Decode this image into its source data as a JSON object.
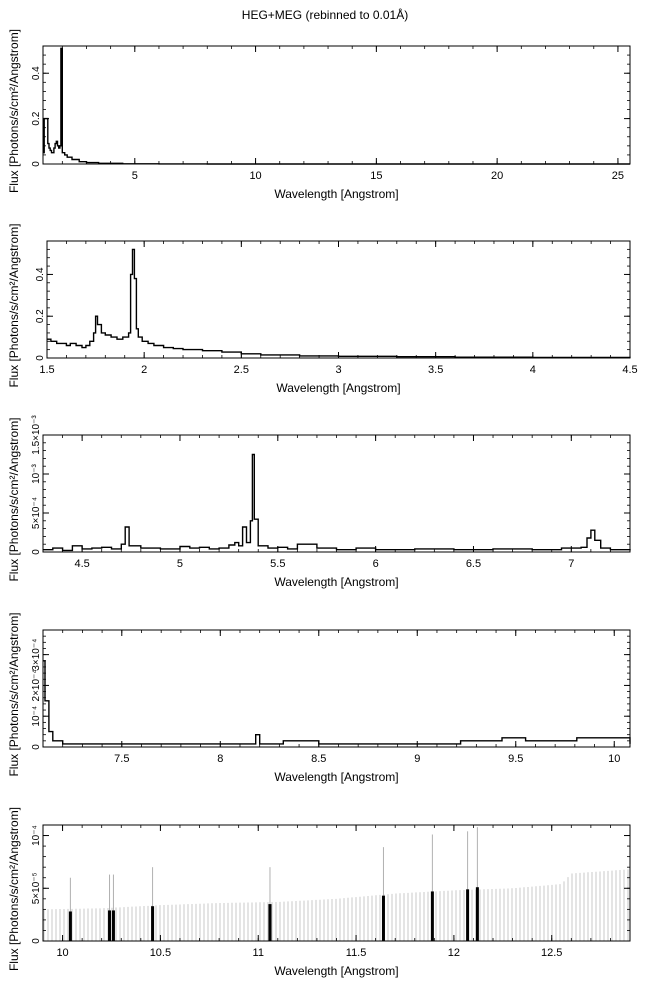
{
  "title": "HEG+MEG (rebinned to 0.01Å)",
  "chart_data": [
    {
      "type": "line",
      "xlabel": "Wavelength [Angstrom]",
      "ylabel": "Flux [Photons/s/cm²/Angstrom]",
      "xlim": [
        1.2,
        25.5
      ],
      "ylim": [
        0,
        0.52
      ],
      "xticks": [
        5,
        10,
        15,
        20,
        25
      ],
      "xtick_labels": [
        "5",
        "10",
        "15",
        "20",
        "25"
      ],
      "yticks": [
        0,
        0.2,
        0.4
      ],
      "ytick_labels": [
        "0",
        "0.2",
        "0.4"
      ],
      "series": [
        {
          "x": [
            1.2,
            1.25,
            1.3,
            1.35,
            1.4,
            1.45,
            1.5,
            1.55,
            1.6,
            1.65,
            1.7,
            1.75,
            1.8,
            1.85,
            1.9,
            1.94,
            2.0,
            2.1,
            2.2,
            2.4,
            2.7,
            3.0,
            3.5,
            4.5,
            6,
            8,
            12,
            16,
            20,
            25.5
          ],
          "y": [
            0.05,
            0.2,
            0.2,
            0.2,
            0.09,
            0.07,
            0.06,
            0.05,
            0.05,
            0.07,
            0.09,
            0.1,
            0.08,
            0.07,
            0.08,
            0.51,
            0.05,
            0.04,
            0.03,
            0.02,
            0.01,
            0.006,
            0.003,
            0.001,
            0.0005,
            0.0002,
            0.0001,
            0.0001,
            0.0001,
            0.0001
          ]
        }
      ]
    },
    {
      "type": "line",
      "xlabel": "Wavelength [Angstrom]",
      "ylabel": "Flux [Photons/s/cm²/Angstrom]",
      "xlim": [
        1.5,
        4.5
      ],
      "ylim": [
        0,
        0.56
      ],
      "xticks": [
        1.5,
        2,
        2.5,
        3,
        3.5,
        4,
        4.5
      ],
      "xtick_labels": [
        "1.5",
        "2",
        "2.5",
        "3",
        "3.5",
        "4",
        "4.5"
      ],
      "yticks": [
        0,
        0.2,
        0.4
      ],
      "ytick_labels": [
        "0",
        "0.2",
        "0.4"
      ],
      "series": [
        {
          "x": [
            1.5,
            1.52,
            1.55,
            1.58,
            1.6,
            1.62,
            1.65,
            1.68,
            1.7,
            1.72,
            1.74,
            1.75,
            1.76,
            1.78,
            1.8,
            1.83,
            1.86,
            1.89,
            1.92,
            1.93,
            1.94,
            1.95,
            1.96,
            1.97,
            1.99,
            2.02,
            2.05,
            2.1,
            2.15,
            2.2,
            2.3,
            2.4,
            2.5,
            2.6,
            2.8,
            3.0,
            3.3,
            3.6,
            4.0,
            4.5
          ],
          "y": [
            0.09,
            0.08,
            0.07,
            0.07,
            0.06,
            0.07,
            0.06,
            0.05,
            0.06,
            0.08,
            0.12,
            0.2,
            0.16,
            0.12,
            0.11,
            0.1,
            0.09,
            0.1,
            0.12,
            0.4,
            0.52,
            0.38,
            0.14,
            0.1,
            0.08,
            0.07,
            0.06,
            0.05,
            0.045,
            0.04,
            0.035,
            0.028,
            0.02,
            0.015,
            0.01,
            0.008,
            0.006,
            0.004,
            0.003,
            0.002
          ]
        }
      ]
    },
    {
      "type": "line",
      "xlabel": "Wavelength [Angstrom]",
      "ylabel": "Flux [Photons/s/cm²/Angstrom]",
      "xlim": [
        4.3,
        7.3
      ],
      "ylim": [
        0,
        0.0015
      ],
      "xticks": [
        4.5,
        5,
        5.5,
        6,
        6.5,
        7
      ],
      "xtick_labels": [
        "4.5",
        "5",
        "5.5",
        "6",
        "6.5",
        "7"
      ],
      "yticks": [
        0,
        0.0005,
        0.001,
        0.0015
      ],
      "ytick_labels": [
        "0",
        "5×10⁻⁴",
        "10⁻³",
        "1.5×10⁻³"
      ],
      "series": [
        {
          "x": [
            4.3,
            4.35,
            4.4,
            4.45,
            4.5,
            4.55,
            4.6,
            4.65,
            4.7,
            4.72,
            4.74,
            4.8,
            4.9,
            5.0,
            5.05,
            5.1,
            5.15,
            5.2,
            5.25,
            5.28,
            5.3,
            5.32,
            5.34,
            5.36,
            5.37,
            5.38,
            5.4,
            5.45,
            5.5,
            5.55,
            5.6,
            5.7,
            5.8,
            5.9,
            6.0,
            6.2,
            6.4,
            6.6,
            6.8,
            6.95,
            7.05,
            7.08,
            7.1,
            7.12,
            7.15,
            7.2,
            7.3
          ],
          "y": [
            3e-05,
            5e-05,
            2e-05,
            8e-05,
            4e-05,
            5e-05,
            6e-05,
            4e-05,
            0.0001,
            0.00032,
            8e-05,
            5e-05,
            4e-05,
            7e-05,
            5e-05,
            6e-05,
            4e-05,
            5e-05,
            9e-05,
            0.00012,
            8e-05,
            0.00032,
            0.00012,
            0.0004,
            0.00125,
            0.00042,
            8e-05,
            5e-05,
            6e-05,
            4e-05,
            0.0001,
            5e-05,
            3e-05,
            5e-05,
            3e-05,
            4e-05,
            3e-05,
            4e-05,
            3e-05,
            5e-05,
            6e-05,
            0.00018,
            0.00028,
            0.00015,
            5e-05,
            3e-05,
            2e-05
          ]
        }
      ]
    },
    {
      "type": "line",
      "xlabel": "Wavelength [Angstrom]",
      "ylabel": "Flux [Photons/s/cm²/Angstrom]",
      "xlim": [
        7.1,
        10.08
      ],
      "ylim": [
        0,
        0.00038
      ],
      "xticks": [
        7.5,
        8,
        8.5,
        9,
        9.5,
        10
      ],
      "xtick_labels": [
        "7.5",
        "8",
        "8.5",
        "9",
        "9.5",
        "10"
      ],
      "yticks": [
        0,
        0.0001,
        0.0002,
        0.0003
      ],
      "ytick_labels": [
        "0",
        "10⁻⁴",
        "2×10⁻⁴",
        "3×10⁻⁴"
      ],
      "series": [
        {
          "x": [
            7.1,
            7.11,
            7.13,
            7.15,
            7.2,
            7.3,
            7.5,
            7.8,
            8.18,
            8.2,
            8.32,
            8.5,
            9.0,
            9.22,
            9.31,
            9.43,
            9.55,
            9.75,
            9.81,
            10.05,
            10.08
          ],
          "y": [
            0.00028,
            0.00015,
            5e-05,
            2e-05,
            1e-05,
            1e-05,
            1e-05,
            1e-05,
            4e-05,
            1e-05,
            2e-05,
            1e-05,
            1e-05,
            2e-05,
            2e-05,
            3e-05,
            2e-05,
            2e-05,
            3e-05,
            3e-05,
            1e-05
          ]
        }
      ]
    },
    {
      "type": "line",
      "xlabel": "Wavelength [Angstrom]",
      "ylabel": "Flux [Photons/s/cm²/Angstrom]",
      "xlim": [
        9.9,
        12.9
      ],
      "ylim": [
        0,
        0.00011
      ],
      "xticks": [
        10,
        10.5,
        11,
        11.5,
        12,
        12.5
      ],
      "xtick_labels": [
        "10",
        "10.5",
        "11",
        "11.5",
        "12",
        "12.5"
      ],
      "yticks": [
        0,
        5e-05,
        0.0001
      ],
      "ytick_labels": [
        "0",
        "5×10⁻⁵",
        "10⁻⁴"
      ],
      "series": [
        {
          "x": [
            10.04,
            10.24,
            10.26,
            10.46,
            11.06,
            11.64,
            11.89,
            12.07,
            12.12
          ],
          "y": [
            2.8e-05,
            2.9e-05,
            2.9e-05,
            3.3e-05,
            3.5e-05,
            4.3e-05,
            4.7e-05,
            4.9e-05,
            5.1e-05
          ]
        }
      ],
      "error_upper": {
        "x": [
          9.9,
          10.2,
          10.5,
          10.8,
          11.1,
          11.4,
          11.7,
          12.0,
          12.3,
          12.55,
          12.6,
          12.9
        ],
        "y": [
          3e-05,
          3.1e-05,
          3.4e-05,
          3.6e-05,
          3.7e-05,
          4e-05,
          4.5e-05,
          4.8e-05,
          5e-05,
          5.4e-05,
          6.4e-05,
          6.8e-05
        ]
      },
      "error_peaks": {
        "x": [
          10.04,
          10.24,
          10.26,
          10.46,
          11.06,
          11.64,
          11.89,
          12.07,
          12.12
        ],
        "y": [
          6e-05,
          6.3e-05,
          6.3e-05,
          7e-05,
          7e-05,
          8.9e-05,
          0.000101,
          0.000104,
          0.000108
        ]
      }
    }
  ]
}
